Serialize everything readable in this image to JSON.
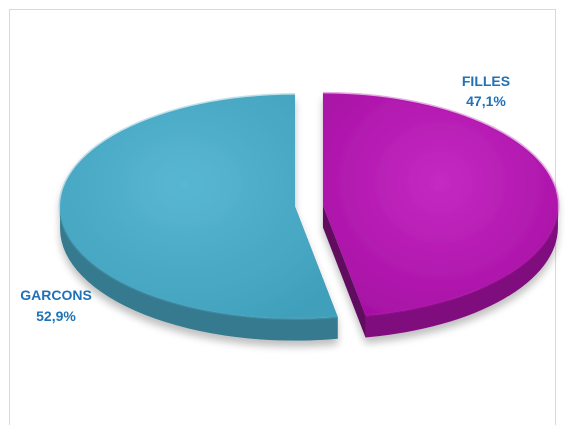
{
  "chart_data": {
    "type": "pie",
    "style": "3d-exploded",
    "labels": [
      "FILLES",
      "GARCONS"
    ],
    "values": [
      47.1,
      52.9
    ],
    "value_labels": [
      "47,1%",
      "52,9%"
    ],
    "colors": {
      "FILLES": "#b115ae",
      "GARCONS": "#4aa9c5"
    },
    "label_color": "#1f71b8",
    "legend": "none"
  }
}
